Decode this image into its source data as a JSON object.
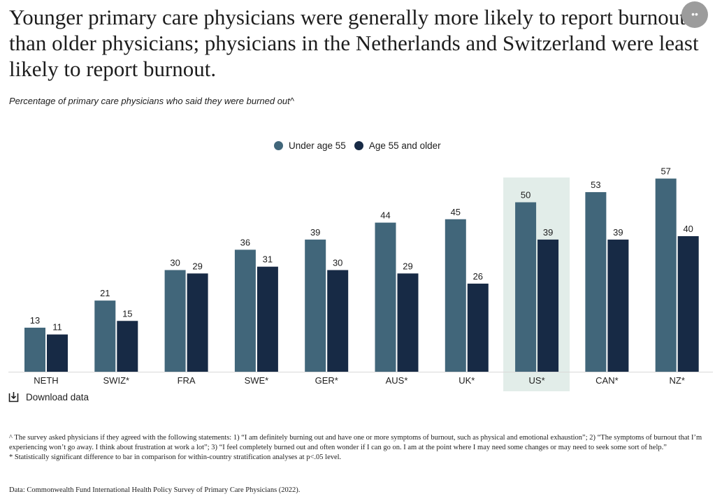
{
  "title": "Younger primary care physicians were generally more likely to report burnout than older physicians; physicians in the Netherlands and Switzerland were least likely to report burnout.",
  "subtitle": "Percentage of primary care physicians who said they were burned out^",
  "share_glyph": "••",
  "download_label": "Download data",
  "footnotes": {
    "caret_note": "^ The survey asked physicians if they agreed with the following statements: 1) “I am definitely burning out and have one or more symptoms of burnout, such as physical and emotional exhaustion”; 2) “The symptoms of burnout that I’m experiencing won’t go away. I think about frustration at work a lot”; 3) “I feel completely burned out and often wonder if I can go on. I am at the point where I may need some changes or may need to seek some sort of help.”",
    "asterisk_note": "* Statistically significant difference to bar in comparison for within-country stratification analyses at p<.05 level.",
    "source": "Data: Commonwealth Fund International Health Policy Survey of Primary Care Physicians (2022)."
  },
  "colors": {
    "under_55": "#41667a",
    "age_55_plus": "#172a45",
    "highlight": "#e2ede9",
    "baseline": "#d9d9d9"
  },
  "chart_data": {
    "type": "bar",
    "categories": [
      "NETH",
      "SWIZ*",
      "FRA",
      "SWE*",
      "GER*",
      "AUS*",
      "UK*",
      "US*",
      "CAN*",
      "NZ*"
    ],
    "series": [
      {
        "name": "Under age 55",
        "values": [
          13,
          21,
          30,
          36,
          39,
          44,
          45,
          50,
          53,
          57
        ]
      },
      {
        "name": "Age 55 and older",
        "values": [
          11,
          15,
          29,
          31,
          30,
          29,
          26,
          39,
          39,
          40
        ]
      }
    ],
    "highlighted_category": "US*",
    "ylim": [
      0,
      57
    ],
    "grid": false,
    "legend_position": "top-center",
    "data_labels": true
  }
}
